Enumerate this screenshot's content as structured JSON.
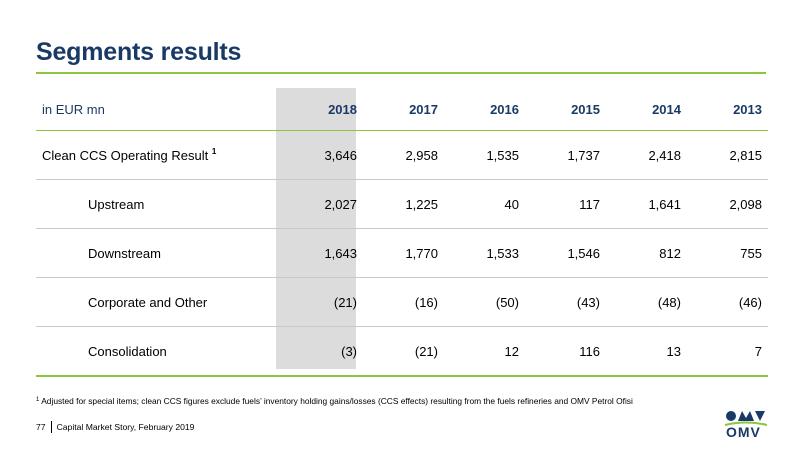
{
  "page": {
    "title": "Segments results",
    "footnote_marker": "1",
    "footnote": "Adjusted for special items; clean CCS figures exclude fuels’ inventory holding gains/losses (CCS effects) resulting from the fuels refineries and OMV Petrol Ofisi",
    "page_number": "77",
    "footer_text": "Capital Market Story, February 2019",
    "logo_text": "OMV"
  },
  "colors": {
    "title": "#1a3a66",
    "accent_rule": "#8cc63f",
    "highlight_column": "#dcdcdc"
  },
  "table": {
    "unit_label": "in EUR mn",
    "years": [
      "2018",
      "2017",
      "2016",
      "2015",
      "2014",
      "2013"
    ],
    "rows": [
      {
        "label": "Clean CCS Operating Result",
        "superscript": "1",
        "values": [
          "3,646",
          "2,958",
          "1,535",
          "1,737",
          "2,418",
          "2,815"
        ]
      },
      {
        "label": "Upstream",
        "values": [
          "2,027",
          "1,225",
          "40",
          "117",
          "1,641",
          "2,098"
        ]
      },
      {
        "label": "Downstream",
        "values": [
          "1,643",
          "1,770",
          "1,533",
          "1,546",
          "812",
          "755"
        ]
      },
      {
        "label": "Corporate and Other",
        "values": [
          "(21)",
          "(16)",
          "(50)",
          "(43)",
          "(48)",
          "(46)"
        ]
      },
      {
        "label": "Consolidation",
        "values": [
          "(3)",
          "(21)",
          "12",
          "116",
          "13",
          "7"
        ]
      }
    ]
  }
}
